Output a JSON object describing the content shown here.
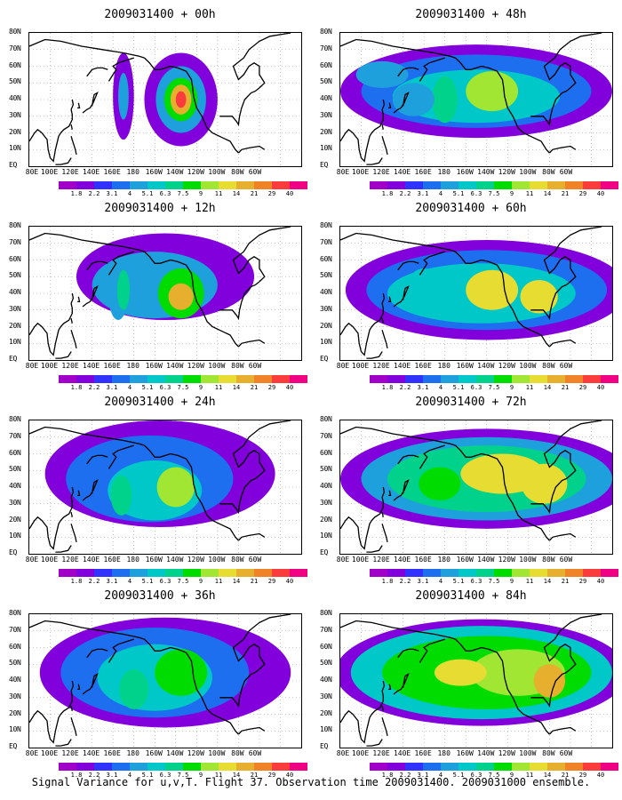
{
  "caption": "Signal Variance for u,v,T. Flight 37. Observation time 2009031400. 2009031000 ensemble.",
  "y_labels": [
    "80N",
    "70N",
    "60N",
    "50N",
    "40N",
    "30N",
    "20N",
    "10N",
    "EQ"
  ],
  "x_labels": [
    "80E",
    "100E",
    "120E",
    "140E",
    "160E",
    "180",
    "160W",
    "140W",
    "120W",
    "100W",
    "80W",
    "60W"
  ],
  "colorbar": {
    "labels": [
      "1.8",
      "2.2",
      "3.1",
      "4",
      "5.1",
      "6.3",
      "7.5",
      "9",
      "11",
      "14",
      "21",
      "29",
      "40"
    ],
    "colors": [
      "#a000c8",
      "#8200dc",
      "#3232ff",
      "#1e6ef0",
      "#1ea0dc",
      "#00c8c8",
      "#00d28c",
      "#00dc00",
      "#a0e632",
      "#e6dc32",
      "#e6af2d",
      "#f08228",
      "#fa3c3c",
      "#f00082"
    ]
  },
  "panels": [
    {
      "title": "2009031400 + 00h"
    },
    {
      "title": "2009031400 + 48h"
    },
    {
      "title": "2009031400 + 12h"
    },
    {
      "title": "2009031400 + 60h"
    },
    {
      "title": "2009031400 + 24h"
    },
    {
      "title": "2009031400 + 72h"
    },
    {
      "title": "2009031400 + 36h"
    },
    {
      "title": "2009031400 + 84h"
    }
  ]
}
